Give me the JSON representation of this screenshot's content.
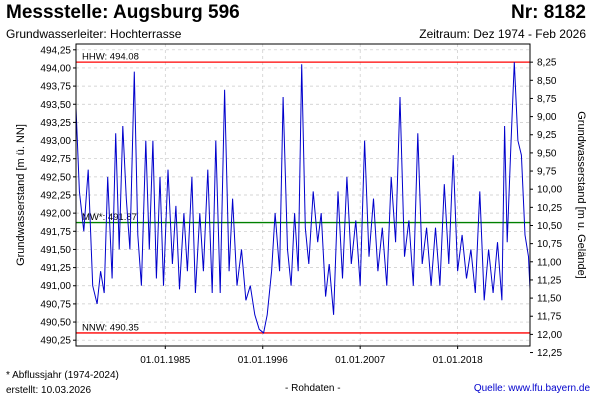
{
  "header": {
    "title": "Messstelle: Augsburg 596",
    "number": "Nr: 8182",
    "aquifer": "Grundwasserleiter:   Hochterrasse",
    "period": "Zeitraum: Dez 1974 - Feb 2026"
  },
  "footer": {
    "footnote": "* Abflussjahr (1974-2024)",
    "created": "erstellt:  10.03.2026",
    "raw": "- Rohdaten -",
    "source": "Quelle:  www.lfu.bayern.de"
  },
  "colors": {
    "series": "#0000cc",
    "reference_lines": "#ff0000",
    "mean_line": "#008000",
    "grid": "#c8c8c8"
  },
  "chart_data": {
    "type": "line",
    "title": "",
    "ylabel": "Grundwasserstand [m ü. NN]",
    "ylabel_right": "Grundwasserstand [m u. Gelände]",
    "xlabel": "",
    "ylim": [
      490.17,
      494.33
    ],
    "xlim": [
      1974.92,
      2026.17
    ],
    "grid": true,
    "y_ticks": [
      494.25,
      494.0,
      493.75,
      493.5,
      493.25,
      493.0,
      492.75,
      492.5,
      492.25,
      492.0,
      491.75,
      491.5,
      491.25,
      491.0,
      490.75,
      490.5,
      490.25
    ],
    "y_tick_labels": [
      "494,25",
      "494,00",
      "493,75",
      "493,50",
      "493,25",
      "493,00",
      "492,75",
      "492,50",
      "492,25",
      "492,00",
      "491,75",
      "491,50",
      "491,25",
      "491,00",
      "490,75",
      "490,50",
      "490,25"
    ],
    "right_ticks": [
      8.25,
      8.5,
      8.75,
      9.0,
      9.25,
      9.5,
      9.75,
      10.0,
      10.25,
      10.5,
      10.75,
      11.0,
      11.25,
      11.5,
      11.75,
      12.0,
      12.25
    ],
    "right_tick_labels": [
      "8,25",
      "8,50",
      "8,75",
      "9,00",
      "9,25",
      "9,50",
      "9,75",
      "10,00",
      "10,25",
      "10,50",
      "10,75",
      "11,00",
      "11,25",
      "11,50",
      "11,75",
      "12,00",
      "12,25"
    ],
    "right_axis_offset": 502.33,
    "x_ticks": [
      1985.0,
      1996.0,
      2007.0,
      2018.0
    ],
    "x_tick_labels": [
      "01.01.1985",
      "01.01.1996",
      "01.01.2007",
      "01.01.2018"
    ],
    "reference_lines": [
      {
        "label": "HHW: 494.08",
        "value": 494.08,
        "color": "#ff0000"
      },
      {
        "label": "MW*: 491.87",
        "value": 491.87,
        "color": "#008000"
      },
      {
        "label": "NNW: 490.35",
        "value": 490.35,
        "color": "#ff0000"
      }
    ],
    "series": [
      {
        "x": [
          1974.92,
          1975.3,
          1975.8,
          1976.3,
          1976.8,
          1977.3,
          1977.7,
          1978.1,
          1978.5,
          1979.0,
          1979.4,
          1979.8,
          1980.2,
          1980.6,
          1981.0,
          1981.5,
          1981.9,
          1982.3,
          1982.8,
          1983.2,
          1983.6,
          1984.0,
          1984.4,
          1984.8,
          1985.3,
          1985.8,
          1986.2,
          1986.6,
          1987.1,
          1987.5,
          1988.0,
          1988.4,
          1988.9,
          1989.3,
          1989.8,
          1990.3,
          1990.7,
          1991.2,
          1991.7,
          1992.2,
          1992.6,
          1993.1,
          1993.6,
          1994.1,
          1994.6,
          1995.1,
          1995.6,
          1996.1,
          1996.5,
          1997.0,
          1997.4,
          1997.9,
          1998.3,
          1998.8,
          1999.2,
          1999.6,
          2000.0,
          2000.4,
          2000.8,
          2001.2,
          2001.7,
          2002.2,
          2002.6,
          2003.1,
          2003.5,
          2004.0,
          2004.5,
          2005.0,
          2005.5,
          2006.0,
          2006.5,
          2007.0,
          2007.5,
          2008.0,
          2008.5,
          2009.0,
          2009.5,
          2010.0,
          2010.5,
          2011.0,
          2011.5,
          2012.0,
          2012.5,
          2013.0,
          2013.5,
          2014.0,
          2014.5,
          2015.0,
          2015.5,
          2016.0,
          2016.5,
          2017.0,
          2017.5,
          2018.0,
          2018.5,
          2019.0,
          2019.5,
          2020.0,
          2020.5,
          2021.0,
          2021.5,
          2022.0,
          2022.5,
          2023.0,
          2023.3,
          2023.6,
          2024.0,
          2024.4,
          2024.8,
          2025.2,
          2025.6,
          2026.0,
          2026.17
        ],
        "values": [
          493.45,
          492.3,
          491.75,
          492.6,
          491.0,
          490.75,
          491.2,
          490.9,
          492.5,
          491.1,
          493.1,
          491.5,
          493.2,
          492.2,
          491.5,
          493.95,
          491.7,
          491.0,
          493.0,
          491.5,
          493.0,
          491.1,
          492.5,
          491.0,
          492.6,
          491.3,
          492.1,
          490.95,
          492.0,
          491.2,
          492.5,
          490.9,
          492.0,
          491.2,
          492.6,
          490.9,
          493.0,
          490.9,
          493.7,
          491.2,
          492.2,
          491.0,
          491.5,
          490.8,
          491.0,
          490.6,
          490.4,
          490.35,
          490.6,
          491.2,
          492.0,
          491.2,
          493.6,
          491.5,
          491.0,
          492.0,
          491.2,
          494.05,
          491.8,
          491.3,
          492.3,
          491.6,
          492.0,
          490.85,
          491.3,
          490.6,
          492.3,
          491.1,
          492.5,
          491.3,
          491.9,
          491.0,
          493.0,
          491.4,
          492.2,
          491.2,
          491.8,
          491.0,
          492.5,
          491.6,
          493.6,
          491.4,
          491.9,
          491.0,
          493.1,
          491.3,
          491.8,
          491.0,
          491.8,
          491.0,
          492.4,
          491.3,
          492.8,
          491.2,
          491.7,
          491.1,
          491.5,
          490.9,
          492.3,
          490.8,
          491.5,
          490.9,
          491.6,
          490.8,
          493.2,
          491.6,
          492.9,
          494.08,
          493.0,
          492.8,
          491.7,
          491.4,
          490.95
        ]
      }
    ]
  }
}
